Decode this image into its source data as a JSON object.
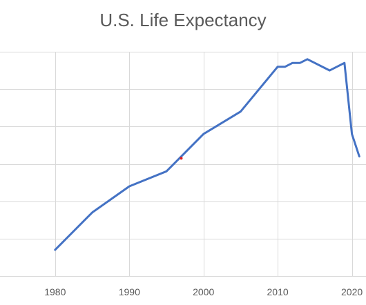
{
  "chart_data": {
    "type": "line",
    "title": "U.S. Life Expectancy",
    "xlabel": "",
    "ylabel": "",
    "x_ticks": [
      1980,
      1990,
      2000,
      2010,
      2020
    ],
    "xlim": [
      1973.5,
      2021.9
    ],
    "ylim": [
      73,
      79
    ],
    "gridlines_y": [
      73,
      74,
      75,
      76,
      77,
      78,
      79
    ],
    "y_tick_labels_visible": false,
    "grid": true,
    "legend": "none",
    "series": [
      {
        "x": [
          1980,
          1985,
          1990,
          1995,
          2000,
          2005,
          2010,
          2011,
          2012,
          2013,
          2014,
          2017,
          2019,
          2020,
          2021
        ],
        "y": [
          73.7,
          74.7,
          75.4,
          75.8,
          76.8,
          77.4,
          78.6,
          78.6,
          78.7,
          78.7,
          78.8,
          78.5,
          78.7,
          76.8,
          76.2
        ],
        "color": "#4472c4"
      }
    ],
    "markers": [
      {
        "x": 1997,
        "y": 76.15,
        "color": "#e02020"
      }
    ]
  }
}
